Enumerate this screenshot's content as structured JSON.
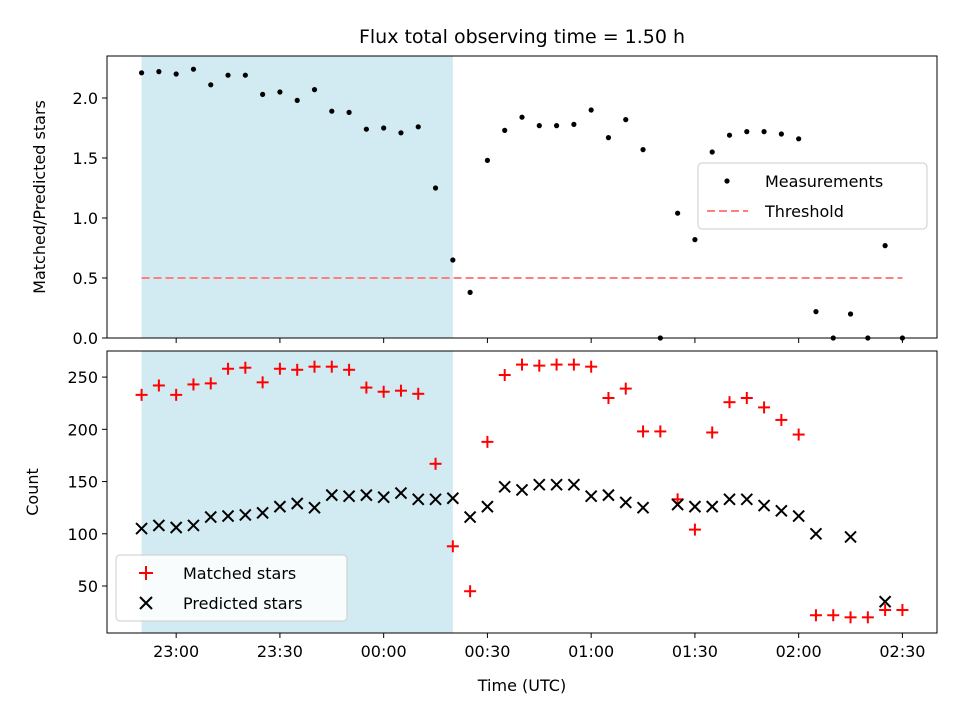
{
  "chart_data": [
    {
      "type": "scatter",
      "panel": "top",
      "title": "Flux total observing time = 1.50 h",
      "xlabel": "",
      "ylabel": "Matched/Predicted stars",
      "xlim": [
        "22:40",
        "02:40"
      ],
      "ylim": [
        0,
        2.35
      ],
      "x_ticks": [
        "23:00",
        "23:30",
        "00:00",
        "00:30",
        "01:00",
        "01:30",
        "02:00",
        "02:30"
      ],
      "y_ticks": [
        "0.0",
        "0.5",
        "1.0",
        "1.5",
        "2.0"
      ],
      "shaded_interval": {
        "start": "22:50",
        "end": "00:20",
        "color": "#add8e6"
      },
      "series": [
        {
          "name": "Measurements",
          "marker": "dot",
          "color": "#000000",
          "points": [
            [
              "22:50",
              2.21
            ],
            [
              "22:55",
              2.22
            ],
            [
              "23:00",
              2.2
            ],
            [
              "23:05",
              2.24
            ],
            [
              "23:10",
              2.11
            ],
            [
              "23:15",
              2.19
            ],
            [
              "23:20",
              2.19
            ],
            [
              "23:25",
              2.03
            ],
            [
              "23:30",
              2.05
            ],
            [
              "23:35",
              1.98
            ],
            [
              "23:40",
              2.07
            ],
            [
              "23:45",
              1.89
            ],
            [
              "23:50",
              1.88
            ],
            [
              "23:55",
              1.74
            ],
            [
              "00:00",
              1.75
            ],
            [
              "00:05",
              1.71
            ],
            [
              "00:10",
              1.76
            ],
            [
              "00:15",
              1.25
            ],
            [
              "00:20",
              0.65
            ],
            [
              "00:25",
              0.38
            ],
            [
              "00:30",
              1.48
            ],
            [
              "00:35",
              1.73
            ],
            [
              "00:40",
              1.84
            ],
            [
              "00:45",
              1.77
            ],
            [
              "00:50",
              1.77
            ],
            [
              "00:55",
              1.78
            ],
            [
              "01:00",
              1.9
            ],
            [
              "01:05",
              1.67
            ],
            [
              "01:10",
              1.82
            ],
            [
              "01:15",
              1.57
            ],
            [
              "01:20",
              0.0
            ],
            [
              "01:25",
              1.04
            ],
            [
              "01:30",
              0.82
            ],
            [
              "01:35",
              1.55
            ],
            [
              "01:40",
              1.69
            ],
            [
              "01:45",
              1.72
            ],
            [
              "01:50",
              1.72
            ],
            [
              "01:55",
              1.7
            ],
            [
              "02:00",
              1.66
            ],
            [
              "02:05",
              0.22
            ],
            [
              "02:10",
              0.0
            ],
            [
              "02:15",
              0.2
            ],
            [
              "02:20",
              0.0
            ],
            [
              "02:25",
              0.77
            ],
            [
              "02:30",
              0.0
            ]
          ]
        },
        {
          "name": "Threshold",
          "style": "dashed",
          "color": "#ff7f7f",
          "points": [
            [
              "22:50",
              0.5
            ],
            [
              "02:30",
              0.5
            ]
          ]
        }
      ],
      "legend": {
        "position": "right",
        "entries": [
          "Measurements",
          "Threshold"
        ]
      }
    },
    {
      "type": "scatter",
      "panel": "bottom",
      "title": "",
      "xlabel": "Time (UTC)",
      "ylabel": "Count",
      "xlim": [
        "22:40",
        "02:40"
      ],
      "ylim": [
        5,
        275
      ],
      "x_ticks": [
        "23:00",
        "23:30",
        "00:00",
        "00:30",
        "01:00",
        "01:30",
        "02:00",
        "02:30"
      ],
      "y_ticks": [
        "50",
        "100",
        "150",
        "200",
        "250"
      ],
      "shaded_interval": {
        "start": "22:50",
        "end": "00:20",
        "color": "#add8e6"
      },
      "series": [
        {
          "name": "Matched stars",
          "marker": "plus",
          "color": "#ff0000",
          "points": [
            [
              "22:50",
              233
            ],
            [
              "22:55",
              242
            ],
            [
              "23:00",
              233
            ],
            [
              "23:05",
              243
            ],
            [
              "23:10",
              244
            ],
            [
              "23:15",
              258
            ],
            [
              "23:20",
              259
            ],
            [
              "23:25",
              245
            ],
            [
              "23:30",
              258
            ],
            [
              "23:35",
              257
            ],
            [
              "23:40",
              260
            ],
            [
              "23:45",
              260
            ],
            [
              "23:50",
              257
            ],
            [
              "23:55",
              240
            ],
            [
              "00:00",
              236
            ],
            [
              "00:05",
              237
            ],
            [
              "00:10",
              234
            ],
            [
              "00:15",
              167
            ],
            [
              "00:20",
              88
            ],
            [
              "00:25",
              45
            ],
            [
              "00:30",
              188
            ],
            [
              "00:35",
              252
            ],
            [
              "00:40",
              262
            ],
            [
              "00:45",
              261
            ],
            [
              "00:50",
              262
            ],
            [
              "00:55",
              262
            ],
            [
              "01:00",
              260
            ],
            [
              "01:05",
              230
            ],
            [
              "01:10",
              239
            ],
            [
              "01:15",
              198
            ],
            [
              "01:20",
              198
            ],
            [
              "01:25",
              133
            ],
            [
              "01:30",
              104
            ],
            [
              "01:35",
              197
            ],
            [
              "01:40",
              226
            ],
            [
              "01:45",
              230
            ],
            [
              "01:50",
              221
            ],
            [
              "01:55",
              209
            ],
            [
              "02:00",
              195
            ],
            [
              "02:05",
              22
            ],
            [
              "02:10",
              22
            ],
            [
              "02:15",
              20
            ],
            [
              "02:20",
              20
            ],
            [
              "02:25",
              27
            ],
            [
              "02:30",
              27
            ]
          ]
        },
        {
          "name": "Predicted stars",
          "marker": "x",
          "color": "#000000",
          "points": [
            [
              "22:50",
              105
            ],
            [
              "22:55",
              108
            ],
            [
              "23:00",
              106
            ],
            [
              "23:05",
              108
            ],
            [
              "23:10",
              116
            ],
            [
              "23:15",
              117
            ],
            [
              "23:20",
              118
            ],
            [
              "23:25",
              120
            ],
            [
              "23:30",
              126
            ],
            [
              "23:35",
              129
            ],
            [
              "23:40",
              125
            ],
            [
              "23:45",
              137
            ],
            [
              "23:50",
              136
            ],
            [
              "23:55",
              137
            ],
            [
              "00:00",
              135
            ],
            [
              "00:05",
              139
            ],
            [
              "00:10",
              133
            ],
            [
              "00:15",
              133
            ],
            [
              "00:20",
              134
            ],
            [
              "00:25",
              116
            ],
            [
              "00:30",
              126
            ],
            [
              "00:35",
              145
            ],
            [
              "00:40",
              142
            ],
            [
              "00:45",
              147
            ],
            [
              "00:50",
              147
            ],
            [
              "00:55",
              147
            ],
            [
              "01:00",
              136
            ],
            [
              "01:05",
              137
            ],
            [
              "01:10",
              130
            ],
            [
              "01:15",
              125
            ],
            [
              "01:25",
              128
            ],
            [
              "01:30",
              126
            ],
            [
              "01:35",
              126
            ],
            [
              "01:40",
              133
            ],
            [
              "01:45",
              133
            ],
            [
              "01:50",
              127
            ],
            [
              "01:55",
              122
            ],
            [
              "02:00",
              117
            ],
            [
              "02:05",
              100
            ],
            [
              "02:15",
              97
            ],
            [
              "02:25",
              35
            ]
          ]
        }
      ],
      "legend": {
        "position": "lower-left",
        "entries": [
          "Matched stars",
          "Predicted stars"
        ]
      }
    }
  ]
}
